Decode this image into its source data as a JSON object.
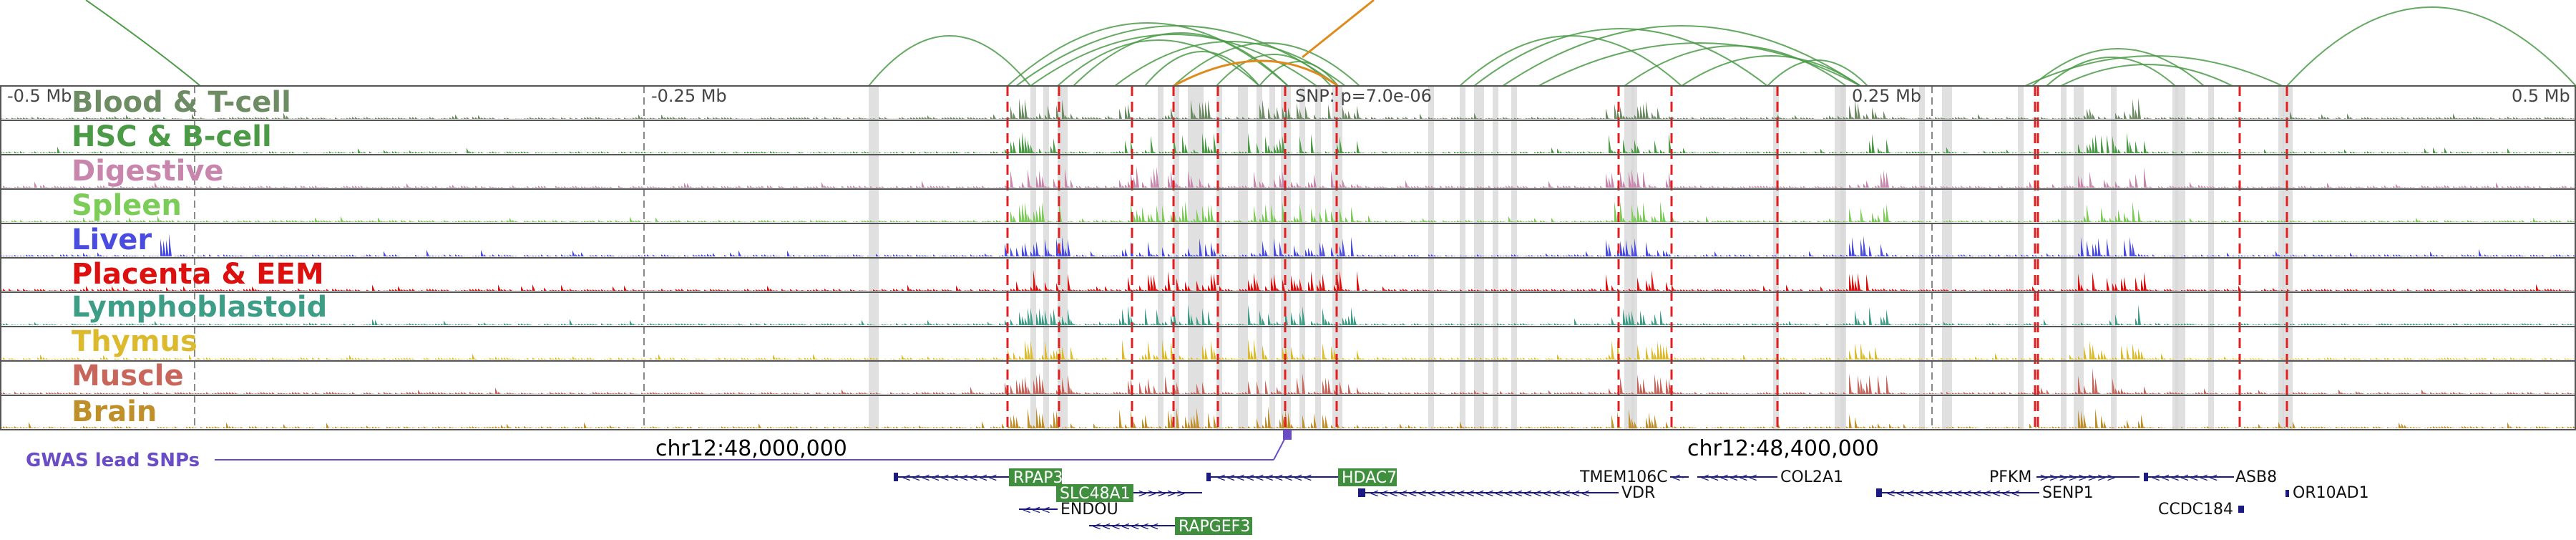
{
  "region": {
    "axis_labels": [
      "-0.5 Mb",
      "-0.25 Mb",
      "0.25 Mb",
      "0.5 Mb"
    ],
    "snp_label": "SNP: p=7.0e-06",
    "chr_labels": [
      "chr12:48,000,000",
      "chr12:48,400,000"
    ],
    "gwas_label": "GWAS lead SNPs"
  },
  "tracks": [
    {
      "name": "Blood & T-cell",
      "color": "#6e8c64"
    },
    {
      "name": "HSC & B-cell",
      "color": "#4a9a46"
    },
    {
      "name": "Digestive",
      "color": "#c886ad"
    },
    {
      "name": "Spleen",
      "color": "#7ccc58"
    },
    {
      "name": "Liver",
      "color": "#4a4ce0"
    },
    {
      "name": "Placenta & EEM",
      "color": "#dd1010"
    },
    {
      "name": "Lymphoblastoid",
      "color": "#3d9d86"
    },
    {
      "name": "Thymus",
      "color": "#dcba2e"
    },
    {
      "name": "Muscle",
      "color": "#c8665c"
    },
    {
      "name": "Brain",
      "color": "#bf8f2a"
    }
  ],
  "genes": {
    "boxed": [
      "RPAP3",
      "HDAC7",
      "SLC48A1",
      "RAPGEF3"
    ],
    "plain": [
      "TMEM106C",
      "COL2A1",
      "PFKM",
      "ASB8",
      "VDR",
      "SENP1",
      "OR10AD1",
      "ENDOU",
      "CCDC184"
    ]
  },
  "colors": {
    "loop": "#4a9a46",
    "loop_highlight": "#e08a1e",
    "red_marker": "#e02020",
    "gray_band": "#d8d8d8",
    "gene_box": "#3f8f3f",
    "gene_track": "#1a1a80",
    "gwas": "#6a4cc6"
  }
}
